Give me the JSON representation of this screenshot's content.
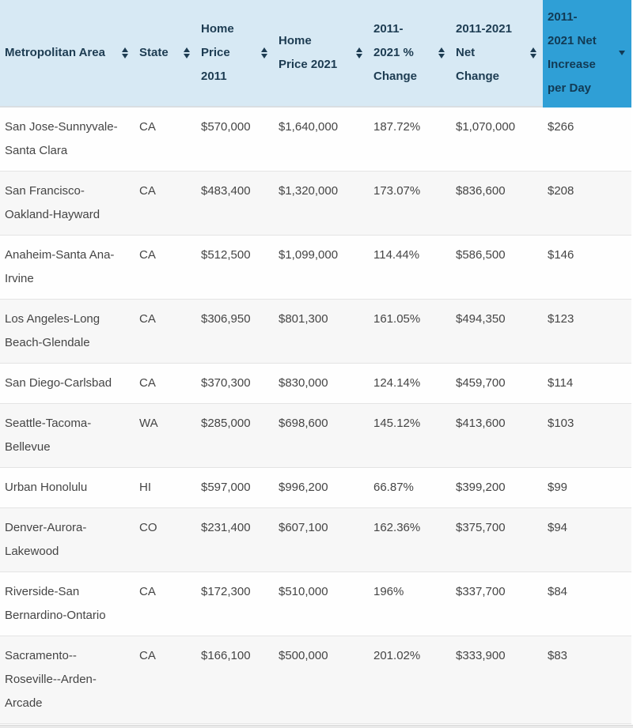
{
  "chart_data": {
    "type": "table",
    "title": "",
    "columns": [
      {
        "key": "metro",
        "label": "Metropolitan Area",
        "slug": "metropolitan-area",
        "sort": "both"
      },
      {
        "key": "state",
        "label": "State",
        "slug": "state",
        "sort": "both"
      },
      {
        "key": "price_2011",
        "label": "Home\nPrice\n2011",
        "slug": "home-price-2011",
        "sort": "both"
      },
      {
        "key": "price_2021",
        "label": "Home\nPrice 2021",
        "slug": "home-price-2021",
        "sort": "both"
      },
      {
        "key": "pct_change",
        "label": "2011-\n2021 %\nChange",
        "slug": "2011-2021-pct-change",
        "sort": "both"
      },
      {
        "key": "net_change",
        "label": "2011-2021\nNet\nChange",
        "slug": "2011-2021-net-change",
        "sort": "both"
      },
      {
        "key": "net_per_day",
        "label": "2011-\n2021 Net\nIncrease\nper Day",
        "slug": "net-increase-per-day",
        "sort": "desc",
        "active": true
      }
    ],
    "rows": [
      {
        "metro": "San Jose-Sunnyvale-Santa Clara",
        "state": "CA",
        "price_2011": "$570,000",
        "price_2021": "$1,640,000",
        "pct_change": "187.72%",
        "net_change": "$1,070,000",
        "net_per_day": "$266"
      },
      {
        "metro": "San Francisco-Oakland-Hayward",
        "state": "CA",
        "price_2011": "$483,400",
        "price_2021": "$1,320,000",
        "pct_change": "173.07%",
        "net_change": "$836,600",
        "net_per_day": "$208"
      },
      {
        "metro": "Anaheim-Santa Ana-Irvine",
        "state": "CA",
        "price_2011": "$512,500",
        "price_2021": "$1,099,000",
        "pct_change": "114.44%",
        "net_change": "$586,500",
        "net_per_day": "$146"
      },
      {
        "metro": "Los Angeles-Long Beach-Glendale",
        "state": "CA",
        "price_2011": "$306,950",
        "price_2021": "$801,300",
        "pct_change": "161.05%",
        "net_change": "$494,350",
        "net_per_day": "$123"
      },
      {
        "metro": "San Diego-Carlsbad",
        "state": "CA",
        "price_2011": "$370,300",
        "price_2021": "$830,000",
        "pct_change": "124.14%",
        "net_change": "$459,700",
        "net_per_day": "$114"
      },
      {
        "metro": "Seattle-Tacoma-Bellevue",
        "state": "WA",
        "price_2011": "$285,000",
        "price_2021": "$698,600",
        "pct_change": "145.12%",
        "net_change": "$413,600",
        "net_per_day": "$103"
      },
      {
        "metro": "Urban Honolulu",
        "state": "HI",
        "price_2011": "$597,000",
        "price_2021": "$996,200",
        "pct_change": "66.87%",
        "net_change": "$399,200",
        "net_per_day": "$99"
      },
      {
        "metro": "Denver-Aurora-Lakewood",
        "state": "CO",
        "price_2011": "$231,400",
        "price_2021": "$607,100",
        "pct_change": "162.36%",
        "net_change": "$375,700",
        "net_per_day": "$94"
      },
      {
        "metro": "Riverside-San Bernardino-Ontario",
        "state": "CA",
        "price_2011": "$172,300",
        "price_2021": "$510,000",
        "pct_change": "196%",
        "net_change": "$337,700",
        "net_per_day": "$84"
      },
      {
        "metro": "Sacramento--Roseville--Arden-Arcade",
        "state": "CA",
        "price_2011": "$166,100",
        "price_2021": "$500,000",
        "pct_change": "201.02%",
        "net_change": "$333,900",
        "net_per_day": "$83"
      }
    ],
    "layout": {
      "sorted_by": "net_per_day",
      "sort_direction": "descending",
      "striped_rows": true
    }
  },
  "colors": {
    "header_bg": "#d7e9f4",
    "header_text": "#1d3c52",
    "active_column_bg": "#2f9fd6",
    "active_column_text": "#123a54",
    "body_text": "#454545",
    "stripe_bg": "#f7f7f7",
    "row_border": "#e4e4e4"
  },
  "icons": {
    "sortable": "sort-both-icon",
    "sorted_desc": "sort-desc-icon"
  }
}
